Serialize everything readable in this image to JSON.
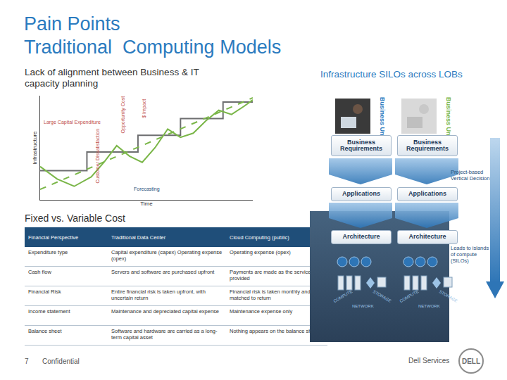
{
  "header": {
    "title_lines": [
      "Pain Points",
      "Traditional  Computing Models"
    ]
  },
  "left_caption": "Lack of alignment between Business & IT capacity planning",
  "chart_data": {
    "type": "line",
    "x_title": "Time",
    "y_title": "Infrastructure",
    "xlim": [
      0,
      10
    ],
    "ylim": [
      0,
      10
    ],
    "tick_labels": false,
    "grid": false,
    "series": [
      {
        "color": "#6d6e70",
        "line_style": "solid",
        "x": [
          0,
          2.2,
          2.2,
          4.6,
          4.6,
          6.6,
          6.6,
          8.6,
          8.6,
          10
        ],
        "values": [
          2.8,
          2.8,
          4.6,
          4.6,
          6.2,
          6.2,
          7.8,
          7.8,
          9.4,
          9.4
        ]
      },
      {
        "color": "#7ab648",
        "line_style": "dashed",
        "x": [
          0,
          10
        ],
        "values": [
          1.0,
          9.8
        ]
      },
      {
        "color": "#7ab648",
        "line_style": "solid",
        "x": [
          0,
          0.8,
          1.6,
          2.4,
          3.0,
          3.6,
          4.2,
          4.8,
          5.4,
          6.0,
          6.6,
          7.2,
          7.8,
          8.4,
          9.0,
          9.6,
          10
        ],
        "values": [
          3.2,
          2.0,
          1.3,
          2.2,
          3.6,
          5.2,
          4.2,
          3.6,
          5.0,
          6.8,
          6.0,
          6.4,
          7.6,
          8.6,
          8.2,
          9.0,
          9.6
        ]
      }
    ],
    "annotations": [
      {
        "text": "Large Capital Expenditure",
        "color": "#c0504d"
      },
      {
        "text": "Opportunity Cost",
        "color": "#c0504d"
      },
      {
        "text": "$ Impact",
        "color": "#c0504d"
      },
      {
        "text": "Customer Dissatisfaction",
        "color": "#c0504d"
      },
      {
        "text": "Forecasting",
        "color": "#1f4e79"
      }
    ]
  },
  "table": {
    "title": "Fixed vs. Variable Cost",
    "header": [
      "Financial Perspective",
      "Traditional Data Center",
      "Cloud Computing (public)"
    ],
    "rows": [
      [
        "Expenditure type",
        "Capital expenditure (capex) Operating expense (opex)",
        "Operating expense (opex)"
      ],
      [
        "Cash flow",
        "Servers and software are purchased upfront",
        "Payments are made as the service is provided"
      ],
      [
        "Financial Risk",
        "Entire financial risk is taken upfront, with uncertain return",
        "Financial risk is taken monthly and is matched to return"
      ],
      [
        "Income statement",
        "Maintenance and depreciated capital expense",
        "Maintenance expense only"
      ],
      [
        "Balance sheet",
        "Software and hardware are carried as a long-term capital asset",
        "Nothing appears on the balance sheet"
      ]
    ]
  },
  "diagram": {
    "title": "Infrastructure SILOs across LOBs",
    "columns": [
      {
        "unit": "Business Unit",
        "requirements": "Business Requirements",
        "applications": "Applications",
        "architecture": "Architecture",
        "resources": [
          "COMPUTE",
          "NETWORK",
          "STORAGE"
        ]
      },
      {
        "unit": "Business Unit",
        "requirements": "Business Requirements",
        "applications": "Applications",
        "architecture": "Architecture",
        "resources": [
          "COMPUTE",
          "NETWORK",
          "STORAGE"
        ]
      }
    ],
    "side_notes": [
      "Project-based Vertical Decision",
      "Leads to islands of compute (SILOs)"
    ]
  },
  "footer": {
    "page": "7",
    "label": "Confidential",
    "company": "Dell Services",
    "logo": "DELL"
  }
}
